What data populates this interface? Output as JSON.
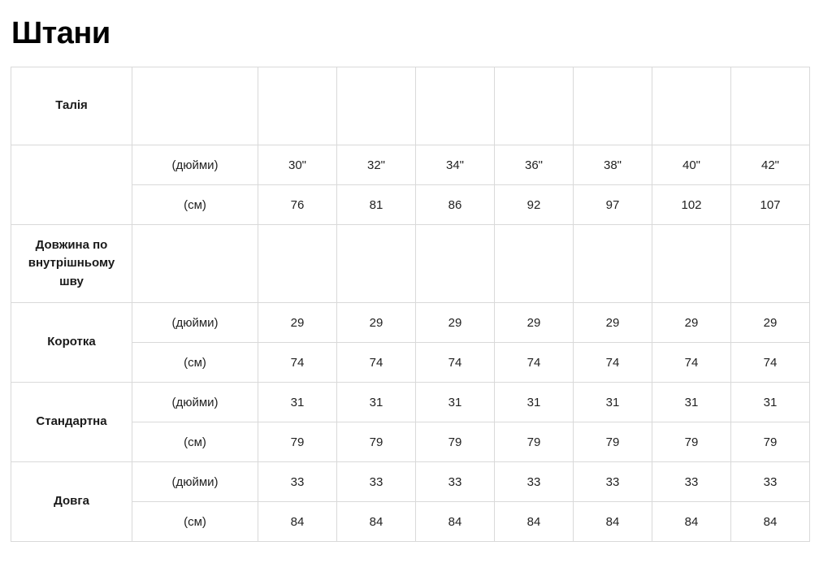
{
  "page": {
    "title": "Штани"
  },
  "colors": {
    "table_border": "#d9d9d9",
    "text": "#222222",
    "background": "#ffffff"
  },
  "table": {
    "size_columns": 7,
    "groups": [
      {
        "type": "header",
        "label": "Талія"
      },
      {
        "type": "pair",
        "label": "",
        "rows": [
          {
            "unit": "(дюйми)",
            "values": [
              "30\"",
              "32\"",
              "34\"",
              "36\"",
              "38\"",
              "40\"",
              "42\""
            ]
          },
          {
            "unit": "(см)",
            "values": [
              "76",
              "81",
              "86",
              "92",
              "97",
              "102",
              "107"
            ]
          }
        ]
      },
      {
        "type": "header",
        "label": "Довжина по внутрішньому шву"
      },
      {
        "type": "pair",
        "label": "Коротка",
        "rows": [
          {
            "unit": "(дюйми)",
            "values": [
              "29",
              "29",
              "29",
              "29",
              "29",
              "29",
              "29"
            ]
          },
          {
            "unit": "(см)",
            "values": [
              "74",
              "74",
              "74",
              "74",
              "74",
              "74",
              "74"
            ]
          }
        ]
      },
      {
        "type": "pair",
        "label": "Стандартна",
        "rows": [
          {
            "unit": "(дюйми)",
            "values": [
              "31",
              "31",
              "31",
              "31",
              "31",
              "31",
              "31"
            ]
          },
          {
            "unit": "(см)",
            "values": [
              "79",
              "79",
              "79",
              "79",
              "79",
              "79",
              "79"
            ]
          }
        ]
      },
      {
        "type": "pair",
        "label": "Довга",
        "rows": [
          {
            "unit": "(дюйми)",
            "values": [
              "33",
              "33",
              "33",
              "33",
              "33",
              "33",
              "33"
            ]
          },
          {
            "unit": "(см)",
            "values": [
              "84",
              "84",
              "84",
              "84",
              "84",
              "84",
              "84"
            ]
          }
        ]
      }
    ]
  }
}
